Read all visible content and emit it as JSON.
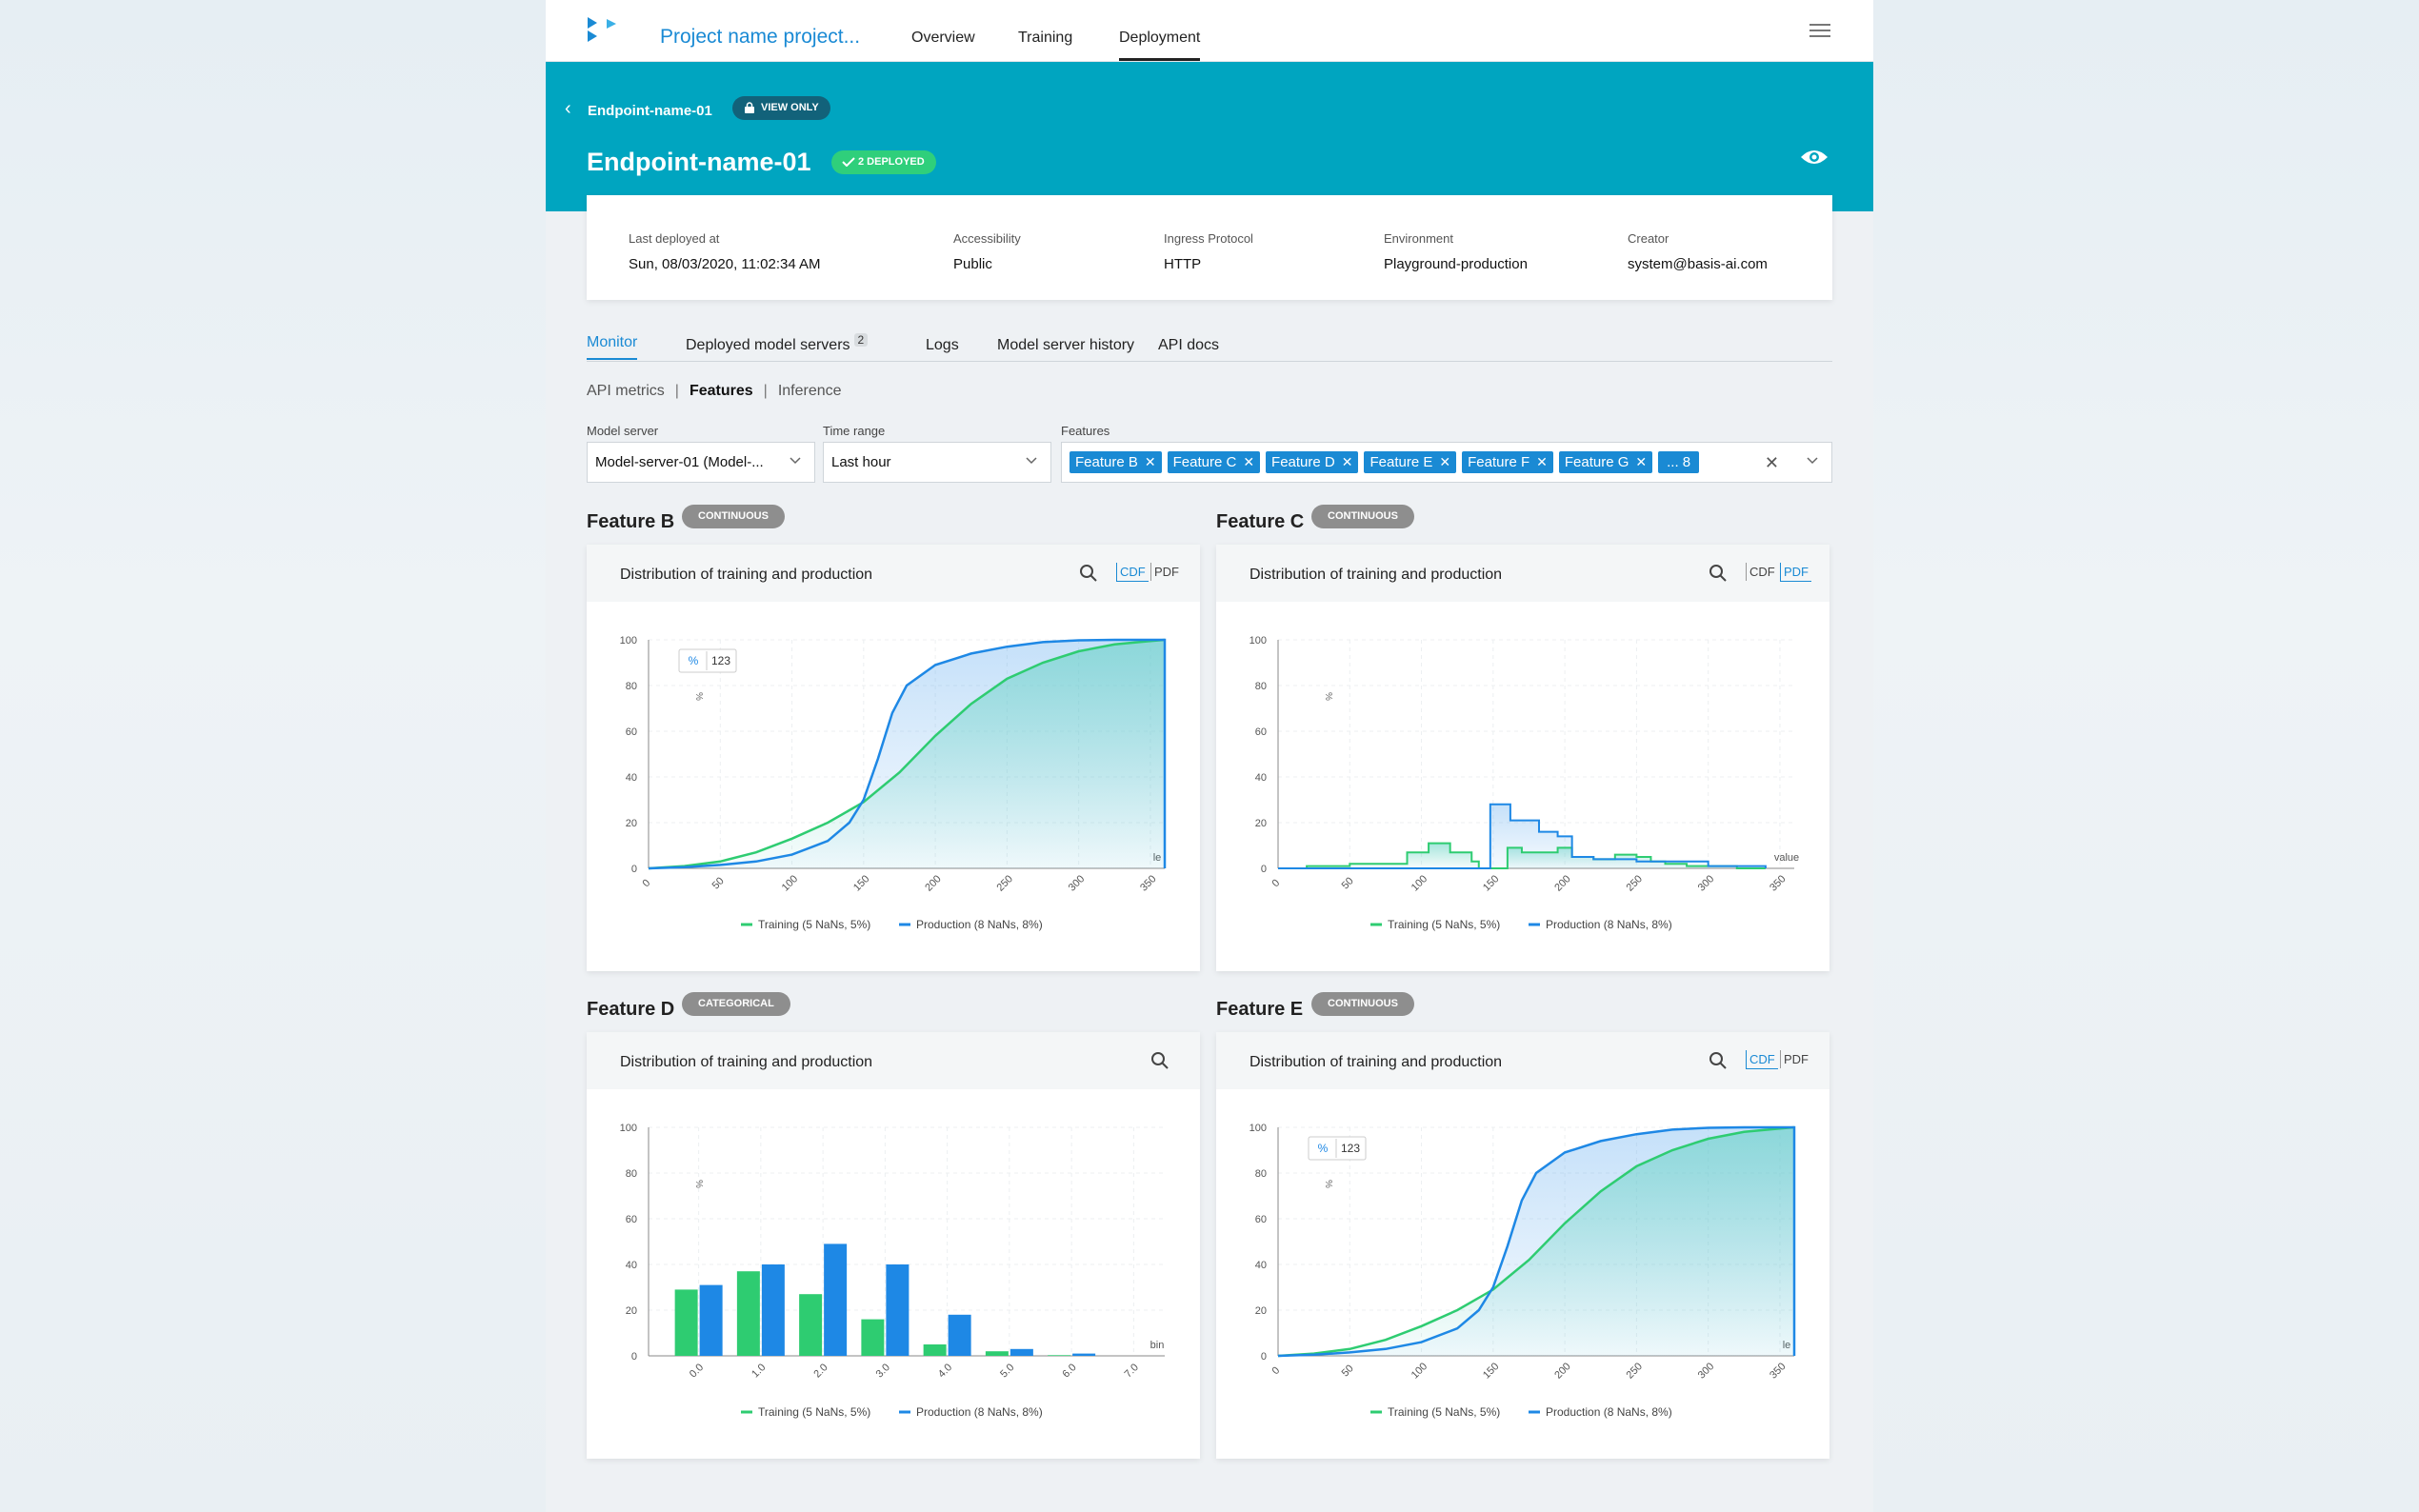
{
  "nav": {
    "project": "Project name project...",
    "items": [
      {
        "label": "Overview"
      },
      {
        "label": "Training"
      },
      {
        "label": "Deployment"
      }
    ]
  },
  "header": {
    "crumb": "Endpoint-name-01",
    "view_only": "VIEW ONLY",
    "title": "Endpoint-name-01",
    "deployed": "2 DEPLOYED"
  },
  "info": {
    "last_deployed_label": "Last deployed at",
    "last_deployed": "Sun, 08/03/2020, 11:02:34 AM",
    "accessibility_label": "Accessibility",
    "accessibility": "Public",
    "protocol_label": "Ingress Protocol",
    "protocol": "HTTP",
    "environment_label": "Environment",
    "environment": "Playground-production",
    "creator_label": "Creator",
    "creator": "system@basis-ai.com"
  },
  "tabs": {
    "monitor": "Monitor",
    "servers": "Deployed model servers",
    "servers_count": "2",
    "logs": "Logs",
    "history": "Model server history",
    "docs": "API docs"
  },
  "subtabs": {
    "api": "API metrics",
    "features": "Features",
    "inference": "Inference"
  },
  "filters": {
    "server_label": "Model server",
    "server": "Model-server-01 (Model-...",
    "time_label": "Time range",
    "time": "Last hour",
    "features_label": "Features",
    "chips": [
      "Feature B",
      "Feature C",
      "Feature D",
      "Feature E",
      "Feature F",
      "Feature G"
    ],
    "more": "... 8"
  },
  "cards": {
    "b": {
      "name": "Feature B",
      "type": "CONTINUOUS",
      "title": "Distribution of training and production"
    },
    "c": {
      "name": "Feature C",
      "type": "CONTINUOUS",
      "title": "Distribution of training and production"
    },
    "d": {
      "name": "Feature D",
      "type": "CATEGORICAL",
      "title": "Distribution of training and production"
    },
    "e": {
      "name": "Feature E",
      "type": "CONTINUOUS",
      "title": "Distribution of training and production"
    }
  },
  "mode_labels": {
    "cdf": "CDF",
    "pdf": "PDF"
  },
  "toggle": {
    "pct": "%",
    "num": "123"
  },
  "colors": {
    "training": "#2ecc71",
    "production": "#1e88e5",
    "teal": "#00a5c0"
  },
  "chart_data": [
    {
      "type": "line",
      "id": "feature-b",
      "mode": "CDF",
      "xlabel": "le",
      "ylabel": "%",
      "xlim": [
        0,
        360
      ],
      "ylim": [
        0,
        100
      ],
      "x_ticks": [
        "0",
        "50",
        "100",
        "150",
        "200",
        "250",
        "300",
        "350"
      ],
      "y_ticks": [
        "0",
        "20",
        "40",
        "60",
        "80",
        "100"
      ],
      "series": [
        {
          "name": "Training (5 NaNs, 5%)",
          "x": [
            0,
            25,
            50,
            75,
            100,
            125,
            150,
            175,
            200,
            225,
            250,
            275,
            300,
            325,
            350,
            360
          ],
          "values": [
            0,
            1,
            3,
            7,
            13,
            20,
            29,
            42,
            58,
            72,
            83,
            90,
            95,
            98,
            99.5,
            100
          ]
        },
        {
          "name": "Production (8 NaNs, 8%)",
          "x": [
            0,
            25,
            50,
            75,
            100,
            125,
            140,
            150,
            160,
            170,
            180,
            200,
            225,
            250,
            275,
            300,
            325,
            350,
            360
          ],
          "values": [
            0,
            0.5,
            1.5,
            3,
            6,
            12,
            20,
            30,
            48,
            68,
            80,
            89,
            94,
            97,
            99,
            99.8,
            100,
            100,
            100
          ]
        }
      ]
    },
    {
      "type": "area",
      "id": "feature-c",
      "mode": "PDF",
      "xlabel": "value",
      "ylabel": "%",
      "xlim": [
        0,
        360
      ],
      "ylim": [
        0,
        100
      ],
      "x_ticks": [
        "0",
        "50",
        "100",
        "150",
        "200",
        "250",
        "300",
        "350"
      ],
      "y_ticks": [
        "0",
        "20",
        "40",
        "60",
        "80",
        "100"
      ],
      "series": [
        {
          "name": "Training (5 NaNs, 5%)",
          "x": [
            0,
            20,
            50,
            75,
            90,
            105,
            120,
            135,
            140,
            150,
            160,
            170,
            180,
            195,
            205,
            220,
            235,
            250,
            260,
            270,
            285,
            300,
            320,
            340
          ],
          "values": [
            0,
            1,
            2,
            2,
            7,
            11,
            7,
            3,
            0,
            0,
            9,
            7,
            7,
            9,
            5,
            4,
            6,
            5,
            3,
            2,
            1,
            1,
            0,
            0
          ]
        },
        {
          "name": "Production (8 NaNs, 8%)",
          "x": [
            0,
            100,
            135,
            140,
            148,
            155,
            162,
            170,
            182,
            195,
            205,
            220,
            250,
            300,
            340
          ],
          "values": [
            0,
            0,
            0,
            0,
            28,
            28,
            21,
            21,
            16,
            14,
            5,
            4,
            3,
            1,
            0
          ]
        }
      ]
    },
    {
      "type": "bar",
      "id": "feature-d",
      "xlabel": "bin",
      "ylabel": "%",
      "ylim": [
        0,
        100
      ],
      "categories": [
        "0.0",
        "1.0",
        "2.0",
        "3.0",
        "4.0",
        "5.0",
        "6.0",
        "7.0"
      ],
      "y_ticks": [
        "0",
        "20",
        "40",
        "60",
        "80",
        "100"
      ],
      "series": [
        {
          "name": "Training (5 NaNs, 5%)",
          "values": [
            29,
            37,
            27,
            16,
            5,
            2,
            0.3,
            0
          ]
        },
        {
          "name": "Production (8 NaNs, 8%)",
          "values": [
            31,
            40,
            49,
            40,
            18,
            3,
            1,
            0
          ]
        }
      ]
    },
    {
      "type": "line",
      "id": "feature-e",
      "mode": "CDF",
      "xlabel": "le",
      "ylabel": "%",
      "xlim": [
        0,
        360
      ],
      "ylim": [
        0,
        100
      ],
      "x_ticks": [
        "0",
        "50",
        "100",
        "150",
        "200",
        "250",
        "300",
        "350"
      ],
      "y_ticks": [
        "0",
        "20",
        "40",
        "60",
        "80",
        "100"
      ],
      "series": [
        {
          "name": "Training (5 NaNs, 5%)",
          "x": [
            0,
            25,
            50,
            75,
            100,
            125,
            150,
            175,
            200,
            225,
            250,
            275,
            300,
            325,
            350,
            360
          ],
          "values": [
            0,
            1,
            3,
            7,
            13,
            20,
            29,
            42,
            58,
            72,
            83,
            90,
            95,
            98,
            99.5,
            100
          ]
        },
        {
          "name": "Production (8 NaNs, 8%)",
          "x": [
            0,
            25,
            50,
            75,
            100,
            125,
            140,
            150,
            160,
            170,
            180,
            200,
            225,
            250,
            275,
            300,
            325,
            350,
            360
          ],
          "values": [
            0,
            0.5,
            1.5,
            3,
            6,
            12,
            20,
            30,
            48,
            68,
            80,
            89,
            94,
            97,
            99,
            99.8,
            100,
            100,
            100
          ]
        }
      ]
    }
  ]
}
